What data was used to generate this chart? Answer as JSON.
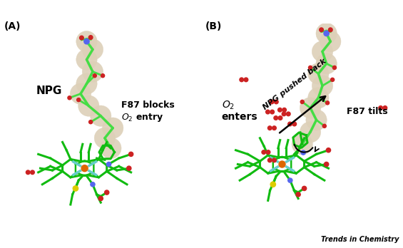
{
  "figsize": [
    5.65,
    3.48
  ],
  "dpi": 100,
  "bg_color": "#ffffff",
  "panel_labels": [
    "(A)",
    "(B)"
  ],
  "panel_label_fontsize": 10,
  "panel_label_fontweight": "bold",
  "watermark": "Trends in Chemistry",
  "watermark_fontsize": 7,
  "npg_chain_color": "#44dd44",
  "npg_bubble_color": "#ddd0b8",
  "npg_bubble_alpha": 0.9,
  "heme_color": "#11bb11",
  "iron_color": "#dd6600",
  "o2_color": "#cc2222",
  "sulfur_color": "#ddcc00",
  "nitrogen_color": "#5566ee",
  "cyan_color": "#66cccc",
  "black": "#000000"
}
